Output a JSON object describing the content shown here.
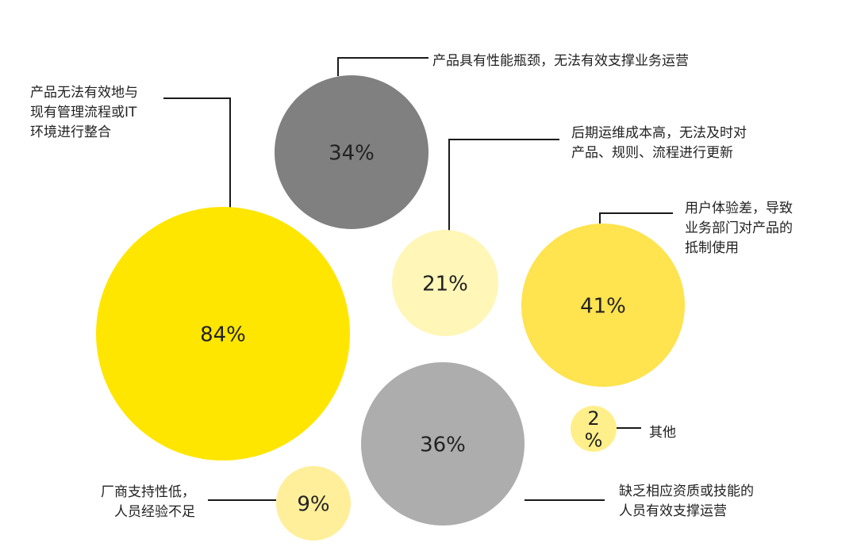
{
  "chart_data": {
    "type": "bubble",
    "title": "",
    "unit": "%",
    "bubbles": [
      {
        "id": "integration",
        "value": 84,
        "label": "84%",
        "category_lines": [
          "产品无法有效地与",
          "现有管理流程或IT",
          "环境进行整合"
        ],
        "color": "#FFE600"
      },
      {
        "id": "performance",
        "value": 34,
        "label": "34%",
        "category_lines": [
          "产品具有性能瓶颈，无法有效支撑业务运营"
        ],
        "color": "#808080"
      },
      {
        "id": "maintenance",
        "value": 21,
        "label": "21%",
        "category_lines": [
          "后期运维成本高，无法及时对",
          "产品、规则、流程进行更新"
        ],
        "color": "#FFF6B8"
      },
      {
        "id": "user-experience",
        "value": 41,
        "label": "41%",
        "category_lines": [
          "用户体验差，导致",
          "业务部门对产品的",
          "抵制使用"
        ],
        "color": "#FFE34F"
      },
      {
        "id": "skills",
        "value": 36,
        "label": "36%",
        "category_lines": [
          "缺乏相应资质或技能的",
          "人员有效支撑运营"
        ],
        "color": "#ADADAD"
      },
      {
        "id": "vendor-support",
        "value": 9,
        "label": "9%",
        "category_lines": [
          "厂商支持性低，",
          "人员经验不足"
        ],
        "color": "#FFEF9A"
      },
      {
        "id": "other",
        "value": 2,
        "label_lines": [
          "2",
          "%"
        ],
        "category_lines": [
          "其他"
        ],
        "color": "#FFEF8A"
      }
    ]
  }
}
